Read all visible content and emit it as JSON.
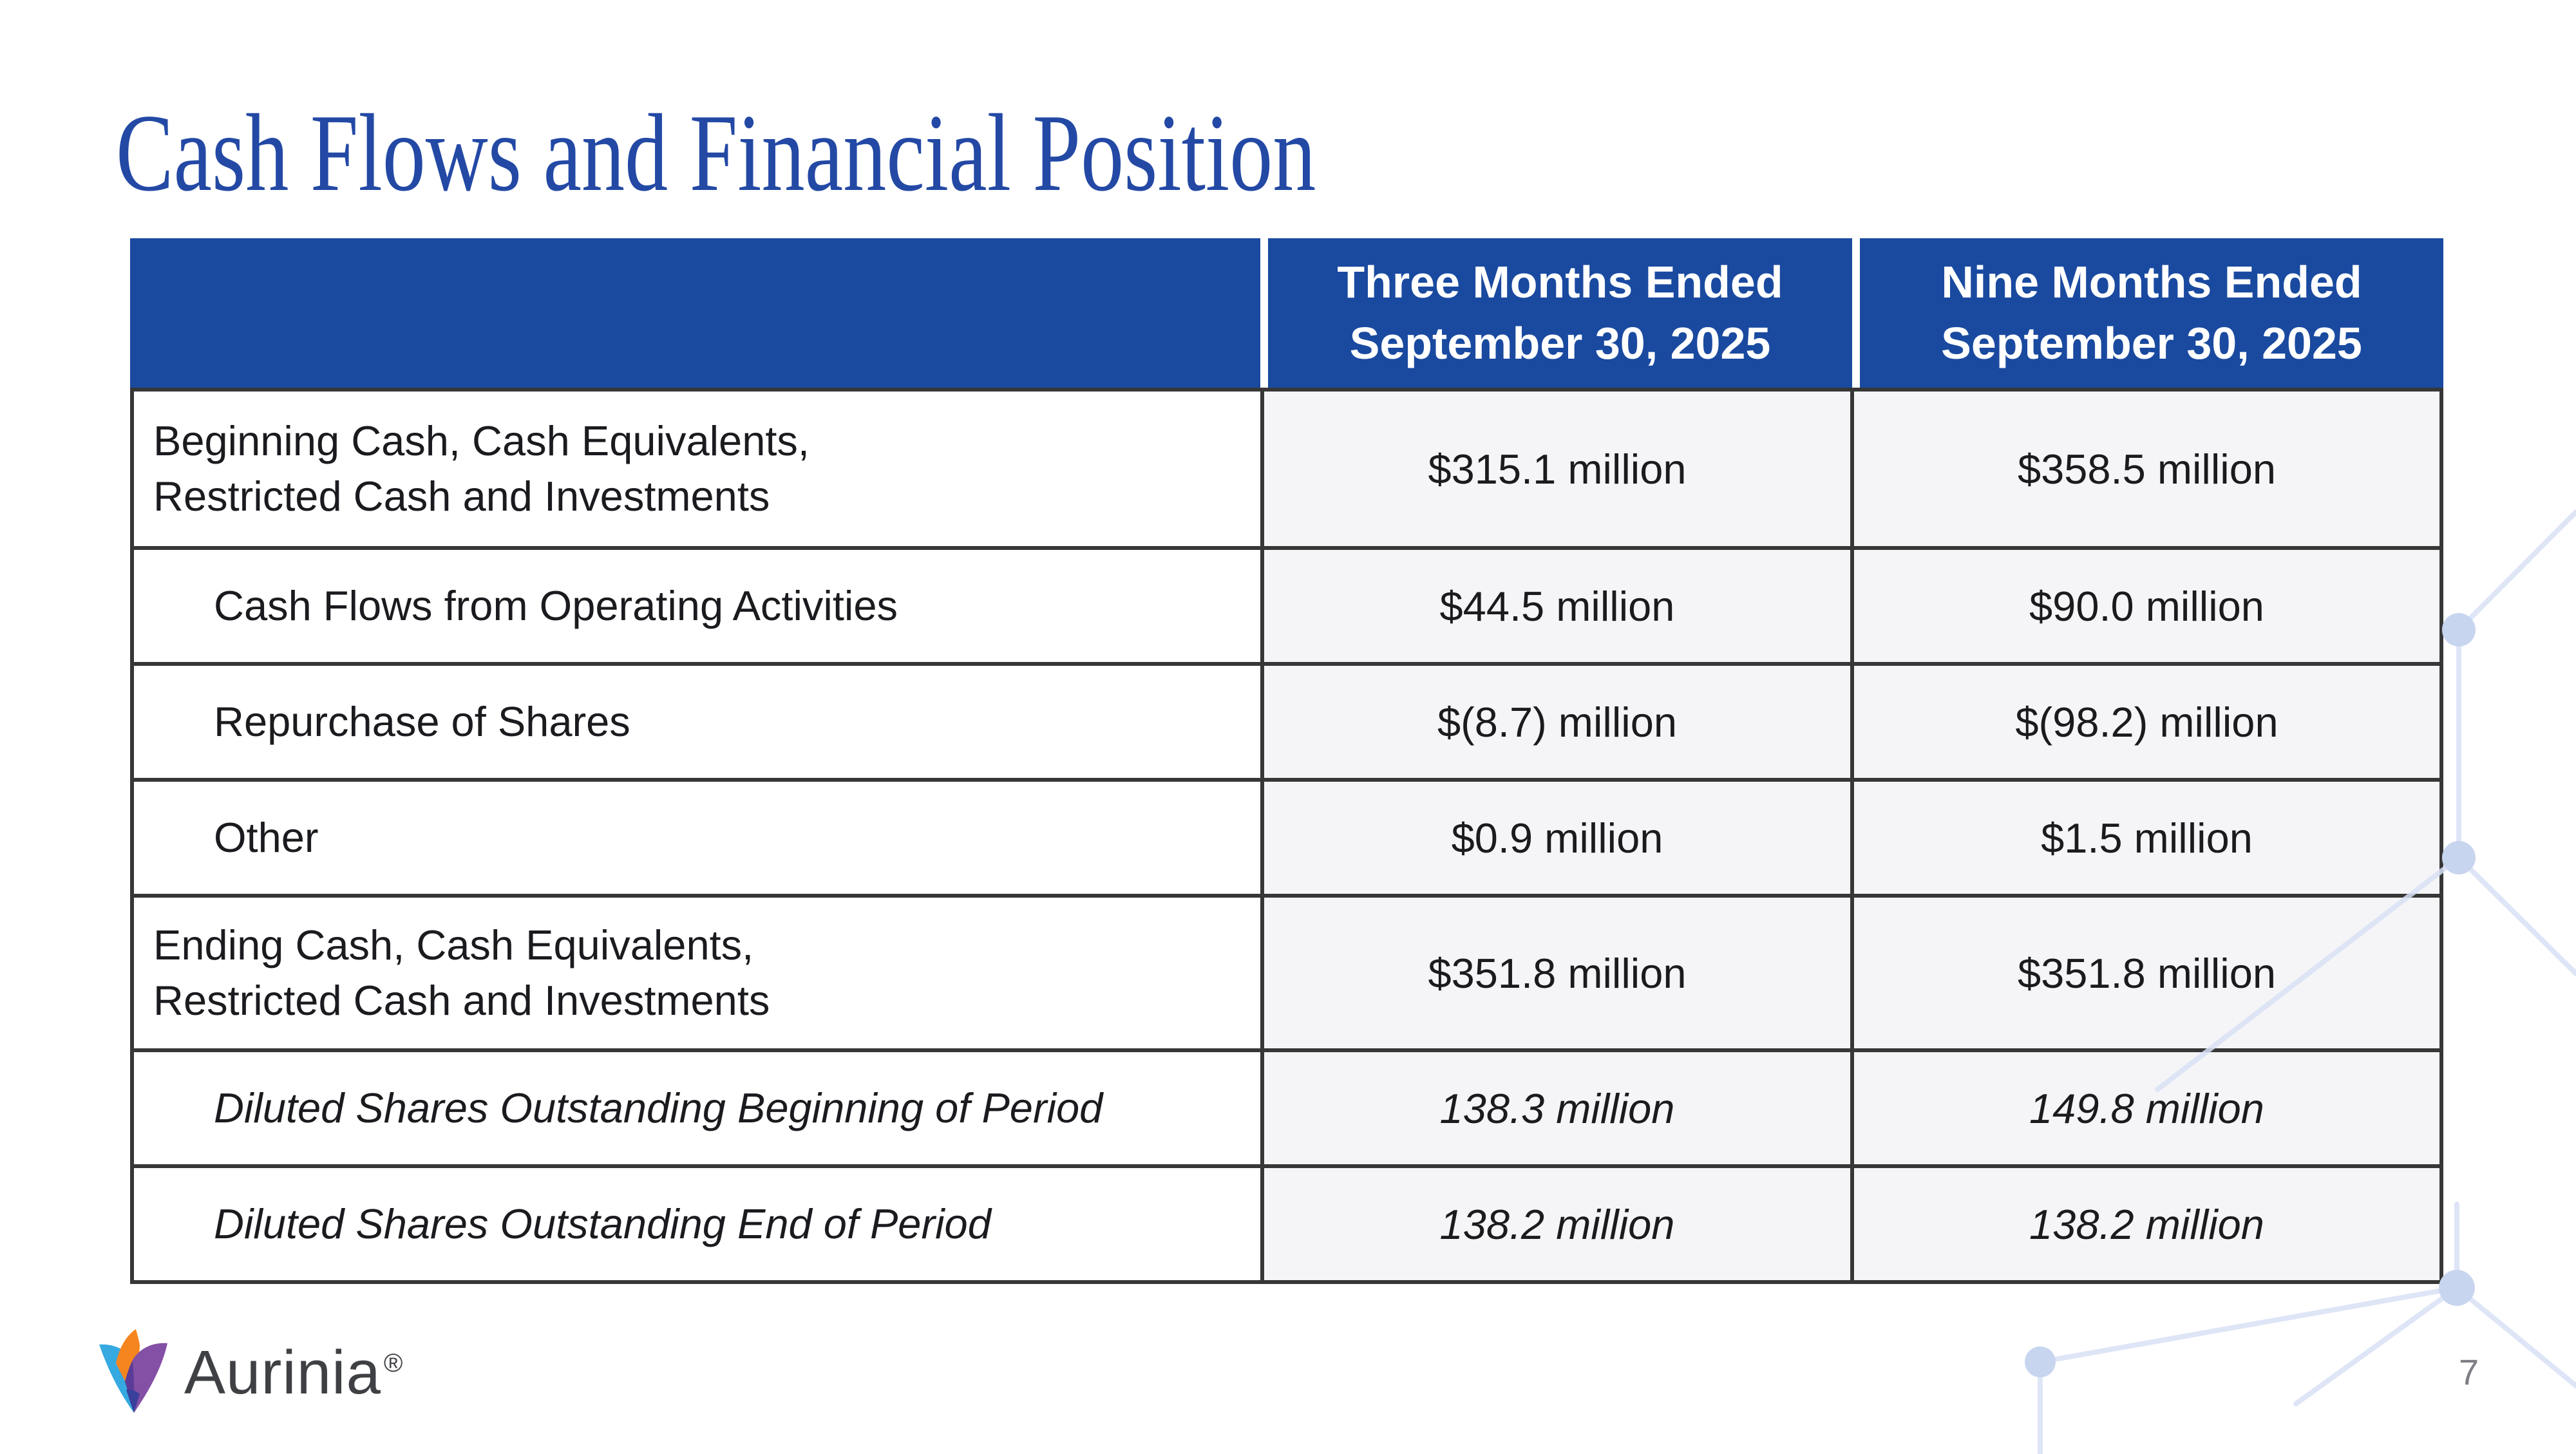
{
  "slide": {
    "title": "Cash Flows and Financial Position",
    "page_number": "7",
    "footer": {
      "brand": "Aurinia",
      "registered_mark": "®"
    }
  },
  "table": {
    "header": {
      "row_label_column": "",
      "col1": {
        "line1": "Three Months Ended",
        "line2": "September 30, 2025"
      },
      "col2": {
        "line1": "Nine Months Ended",
        "line2": "September 30, 2025"
      }
    },
    "rows": [
      {
        "label_lines": [
          "Beginning Cash, Cash Equivalents,",
          "Restricted Cash and Investments"
        ],
        "three_months_value": "$315.1 million",
        "nine_months_value": "$358.5 million",
        "indent": false,
        "italic": false,
        "tall": true
      },
      {
        "label_lines": [
          "Cash Flows from Operating Activities"
        ],
        "three_months_value": "$44.5 million",
        "nine_months_value": "$90.0 million",
        "indent": true,
        "italic": false,
        "tall": false
      },
      {
        "label_lines": [
          "Repurchase of Shares"
        ],
        "three_months_value": "$(8.7) million",
        "nine_months_value": "$(98.2) million",
        "indent": true,
        "italic": false,
        "tall": false
      },
      {
        "label_lines": [
          "Other"
        ],
        "three_months_value": "$0.9 million",
        "nine_months_value": "$1.5 million",
        "indent": true,
        "italic": false,
        "tall": false
      },
      {
        "label_lines": [
          "Ending Cash, Cash Equivalents,",
          "Restricted Cash and Investments"
        ],
        "three_months_value": "$351.8 million",
        "nine_months_value": "$351.8 million",
        "indent": false,
        "italic": false,
        "tall": true
      },
      {
        "label_lines": [
          "Diluted Shares Outstanding Beginning of Period"
        ],
        "three_months_value": "138.3 million",
        "nine_months_value": "149.8 million",
        "indent": true,
        "italic": true,
        "tall": false
      },
      {
        "label_lines": [
          "Diluted Shares Outstanding End of Period"
        ],
        "three_months_value": "138.2 million",
        "nine_months_value": "138.2 million",
        "indent": true,
        "italic": true,
        "tall": false
      }
    ]
  },
  "colors": {
    "header_blue": "#1A4AA0",
    "title_blue": "#2349A5",
    "value_cell_gray": "#F5F5F7",
    "table_border": "#373737",
    "hexagon_line": "#D8E1F4",
    "hexagon_node": "#C8D5EF",
    "logo_blue": "#36A9E1",
    "logo_orange": "#F6851F",
    "logo_purple": "#8450A5",
    "logo_dark_purple": "#5B3B97",
    "logo_indigo": "#3A3F9C",
    "page_number_gray": "#7E7E86"
  }
}
